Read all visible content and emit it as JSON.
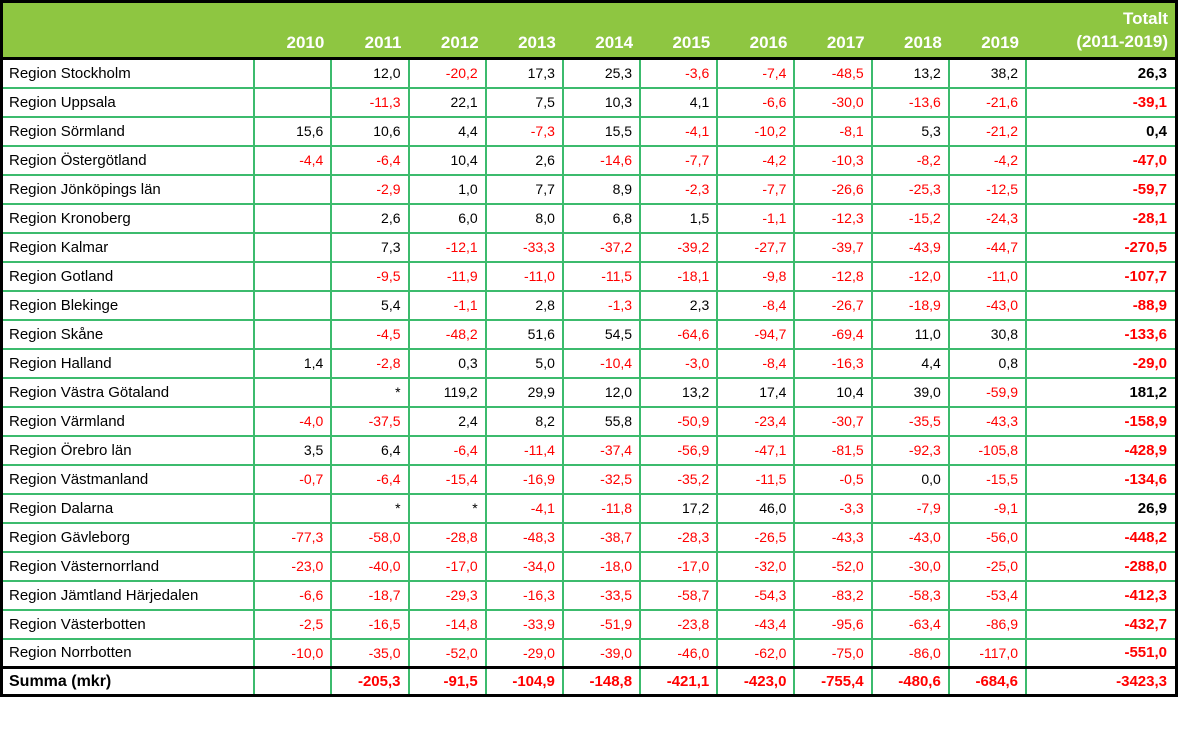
{
  "chart_data": {
    "type": "table",
    "title": "Totalt (2011-2019)",
    "total_column_header": {
      "line1": "Totalt",
      "line2": "(2011-2019)"
    },
    "columns": [
      "2010",
      "2011",
      "2012",
      "2013",
      "2014",
      "2015",
      "2016",
      "2017",
      "2018",
      "2019"
    ],
    "rows": [
      {
        "name": "Region Stockholm",
        "values": [
          "",
          "12,0",
          "-20,2",
          "17,3",
          "25,3",
          "-3,6",
          "-7,4",
          "-48,5",
          "13,2",
          "38,2"
        ],
        "total": "26,3"
      },
      {
        "name": "Region Uppsala",
        "values": [
          "",
          "-11,3",
          "22,1",
          "7,5",
          "10,3",
          "4,1",
          "-6,6",
          "-30,0",
          "-13,6",
          "-21,6"
        ],
        "total": "-39,1"
      },
      {
        "name": "Region Sörmland",
        "values": [
          "15,6",
          "10,6",
          "4,4",
          "-7,3",
          "15,5",
          "-4,1",
          "-10,2",
          "-8,1",
          "5,3",
          "-21,2"
        ],
        "total": "0,4"
      },
      {
        "name": "Region Östergötland",
        "values": [
          "-4,4",
          "-6,4",
          "10,4",
          "2,6",
          "-14,6",
          "-7,7",
          "-4,2",
          "-10,3",
          "-8,2",
          "-4,2"
        ],
        "total": "-47,0"
      },
      {
        "name": "Region Jönköpings län",
        "values": [
          "",
          "-2,9",
          "1,0",
          "7,7",
          "8,9",
          "-2,3",
          "-7,7",
          "-26,6",
          "-25,3",
          "-12,5"
        ],
        "total": "-59,7"
      },
      {
        "name": "Region Kronoberg",
        "values": [
          "",
          "2,6",
          "6,0",
          "8,0",
          "6,8",
          "1,5",
          "-1,1",
          "-12,3",
          "-15,2",
          "-24,3"
        ],
        "total": "-28,1"
      },
      {
        "name": "Region Kalmar",
        "values": [
          "",
          "7,3",
          "-12,1",
          "-33,3",
          "-37,2",
          "-39,2",
          "-27,7",
          "-39,7",
          "-43,9",
          "-44,7"
        ],
        "total": "-270,5"
      },
      {
        "name": "Region Gotland",
        "values": [
          "",
          "-9,5",
          "-11,9",
          "-11,0",
          "-11,5",
          "-18,1",
          "-9,8",
          "-12,8",
          "-12,0",
          "-11,0"
        ],
        "total": "-107,7"
      },
      {
        "name": "Region Blekinge",
        "values": [
          "",
          "5,4",
          "-1,1",
          "2,8",
          "-1,3",
          "2,3",
          "-8,4",
          "-26,7",
          "-18,9",
          "-43,0"
        ],
        "total": "-88,9"
      },
      {
        "name": "Region Skåne",
        "values": [
          "",
          "-4,5",
          "-48,2",
          "51,6",
          "54,5",
          "-64,6",
          "-94,7",
          "-69,4",
          "11,0",
          "30,8"
        ],
        "total": "-133,6"
      },
      {
        "name": "Region Halland",
        "values": [
          "1,4",
          "-2,8",
          "0,3",
          "5,0",
          "-10,4",
          "-3,0",
          "-8,4",
          "-16,3",
          "4,4",
          "0,8"
        ],
        "total": "-29,0"
      },
      {
        "name": "Region Västra Götaland",
        "values": [
          "",
          "*",
          "119,2",
          "29,9",
          "12,0",
          "13,2",
          "17,4",
          "10,4",
          "39,0",
          "-59,9"
        ],
        "total": "181,2"
      },
      {
        "name": "Region Värmland",
        "values": [
          "-4,0",
          "-37,5",
          "2,4",
          "8,2",
          "55,8",
          "-50,9",
          "-23,4",
          "-30,7",
          "-35,5",
          "-43,3"
        ],
        "total": "-158,9"
      },
      {
        "name": "Region Örebro län",
        "values": [
          "3,5",
          "6,4",
          "-6,4",
          "-11,4",
          "-37,4",
          "-56,9",
          "-47,1",
          "-81,5",
          "-92,3",
          "-105,8"
        ],
        "total": "-428,9"
      },
      {
        "name": "Region Västmanland",
        "values": [
          "-0,7",
          "-6,4",
          "-15,4",
          "-16,9",
          "-32,5",
          "-35,2",
          "-11,5",
          "-0,5",
          "0,0",
          "-15,5"
        ],
        "total": "-134,6"
      },
      {
        "name": "Region Dalarna",
        "values": [
          "",
          "*",
          "*",
          "-4,1",
          "-11,8",
          "17,2",
          "46,0",
          "-3,3",
          "-7,9",
          "-9,1"
        ],
        "total": "26,9"
      },
      {
        "name": "Region Gävleborg",
        "values": [
          "-77,3",
          "-58,0",
          "-28,8",
          "-48,3",
          "-38,7",
          "-28,3",
          "-26,5",
          "-43,3",
          "-43,0",
          "-56,0"
        ],
        "total": "-448,2"
      },
      {
        "name": "Region Västernorrland",
        "values": [
          "-23,0",
          "-40,0",
          "-17,0",
          "-34,0",
          "-18,0",
          "-17,0",
          "-32,0",
          "-52,0",
          "-30,0",
          "-25,0"
        ],
        "total": "-288,0"
      },
      {
        "name": "Region Jämtland Härjedalen",
        "values": [
          "-6,6",
          "-18,7",
          "-29,3",
          "-16,3",
          "-33,5",
          "-58,7",
          "-54,3",
          "-83,2",
          "-58,3",
          "-53,4"
        ],
        "total": "-412,3"
      },
      {
        "name": "Region Västerbotten",
        "values": [
          "-2,5",
          "-16,5",
          "-14,8",
          "-33,9",
          "-51,9",
          "-23,8",
          "-43,4",
          "-95,6",
          "-63,4",
          "-86,9"
        ],
        "total": "-432,7"
      },
      {
        "name": "Region Norrbotten",
        "values": [
          "-10,0",
          "-35,0",
          "-52,0",
          "-29,0",
          "-39,0",
          "-46,0",
          "-62,0",
          "-75,0",
          "-86,0",
          "-117,0"
        ],
        "total": "-551,0"
      }
    ],
    "summary_row": {
      "name": "Summa (mkr)",
      "values": [
        "",
        "-205,3",
        "-91,5",
        "-104,9",
        "-148,8",
        "-421,1",
        "-423,0",
        "-755,4",
        "-480,6",
        "-684,6"
      ],
      "total": "-3423,3"
    },
    "layout": {
      "grid": true,
      "legend": "none",
      "negative_values_in_red": true
    }
  },
  "colors": {
    "header_bg": "#8EC641",
    "header_text": "#FFFFFF",
    "grid_green": "#3CBB6D",
    "negative": "#FF0000",
    "positive": "#000000",
    "edge": "#000000"
  }
}
